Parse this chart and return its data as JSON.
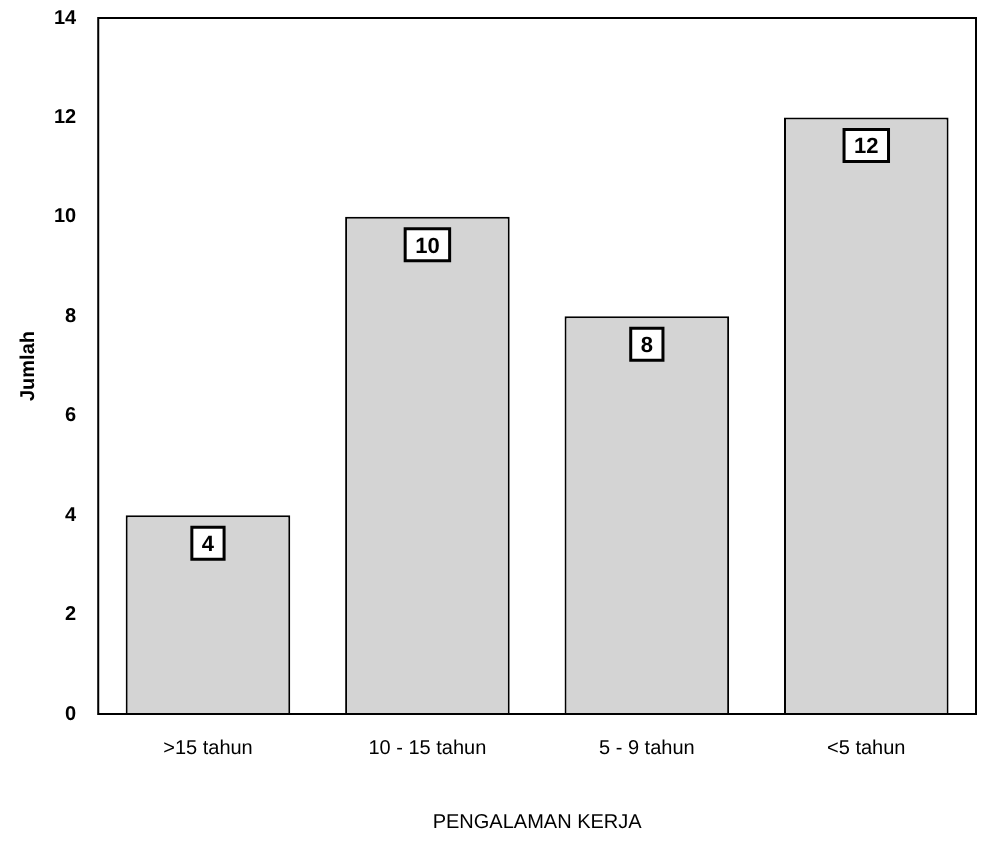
{
  "chart_data": {
    "type": "bar",
    "xlabel": "PENGALAMAN KERJA",
    "ylabel": "Jumlah",
    "categories": [
      ">15 tahun",
      "10 - 15 tahun",
      "5 - 9 tahun",
      "<5 tahun"
    ],
    "values": [
      4,
      10,
      8,
      12
    ],
    "color": "#d4d4d4",
    "ylim": [
      0,
      14
    ],
    "yticks": [
      0,
      2,
      4,
      6,
      8,
      10,
      12,
      14
    ],
    "grid": false,
    "legend": false,
    "data_labels": true
  }
}
